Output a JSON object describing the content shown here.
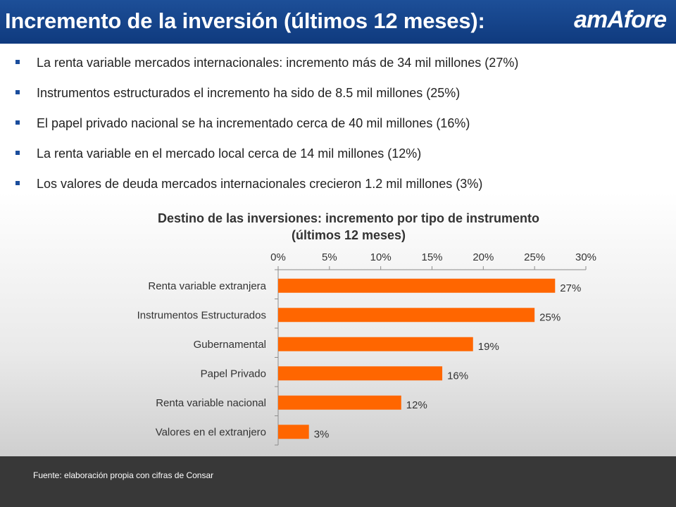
{
  "header": {
    "title": "Incremento de la inversión (últimos 12 meses):",
    "logo_text": "amAfore"
  },
  "bullets": [
    "La renta variable mercados internacionales: incremento más de 34 mil millones (27%)",
    "Instrumentos estructurados el incremento ha sido de 8.5 mil millones (25%)",
    "El papel privado nacional se ha incrementado cerca de 40 mil millones (16%)",
    "La renta variable en el mercado local cerca de 14 mil millones (12%)",
    "Los valores de deuda mercados internacionales crecieron 1.2 mil millones (3%)"
  ],
  "chart_data": {
    "type": "bar",
    "orientation": "horizontal",
    "title_line1": "Destino de las inversiones: incremento por tipo de instrumento",
    "title_line2": "(últimos 12 meses)",
    "categories": [
      "Renta variable extranjera",
      "Instrumentos Estructurados",
      "Gubernamental",
      "Papel Privado",
      "Renta variable nacional",
      "Valores en el extranjero"
    ],
    "values": [
      27,
      25,
      19,
      16,
      12,
      3
    ],
    "value_labels": [
      "27%",
      "25%",
      "19%",
      "16%",
      "12%",
      "3%"
    ],
    "xlim": [
      0,
      30
    ],
    "ticks": [
      0,
      5,
      10,
      15,
      20,
      25,
      30
    ],
    "tick_labels": [
      "0%",
      "5%",
      "10%",
      "15%",
      "20%",
      "25%",
      "30%"
    ],
    "axis_position": "top",
    "grid": false,
    "legend": "none",
    "bar_color": "#ff6600"
  },
  "footer": {
    "source": "Fuente: elaboración propia con cifras de Consar"
  }
}
